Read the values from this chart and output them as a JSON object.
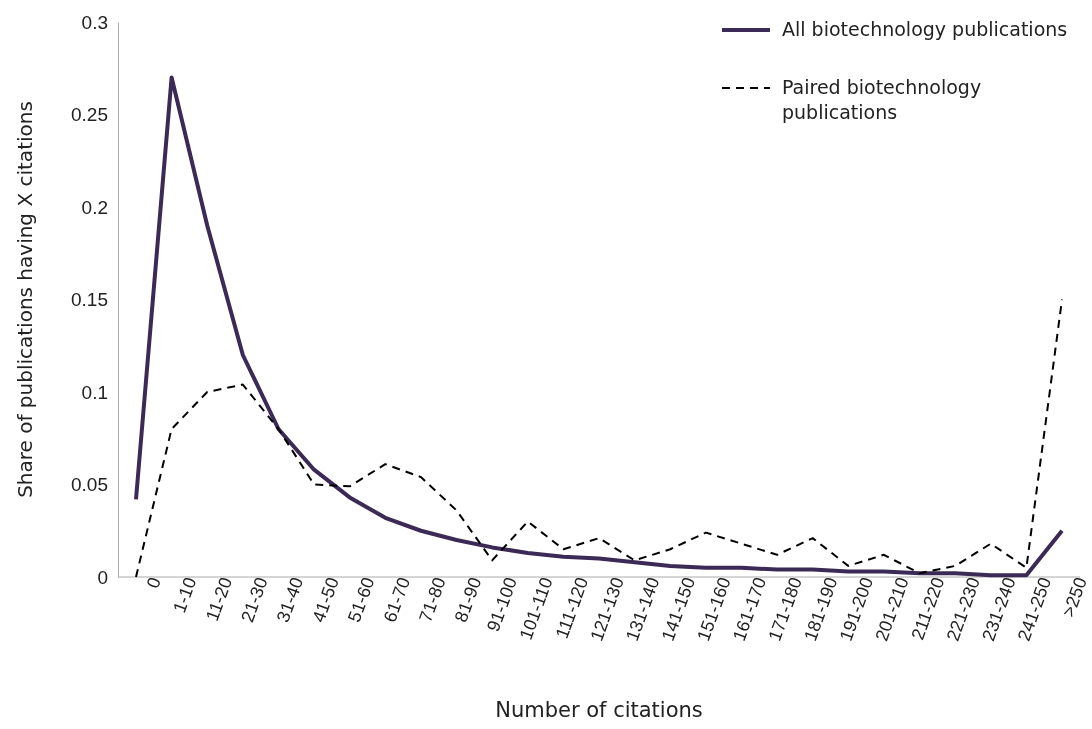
{
  "chart_data": {
    "type": "line",
    "xlabel": "Number of citations",
    "ylabel": "Share of publications having X citations",
    "categories": [
      "0",
      "1-10",
      "11-20",
      "21-30",
      "31-40",
      "41-50",
      "51-60",
      "61-70",
      "71-80",
      "81-90",
      "91-100",
      "101-110",
      "111-120",
      "121-130",
      "131-140",
      "141-150",
      "151-160",
      "161-170",
      "171-180",
      "181-190",
      "191-200",
      "201-210",
      "211-220",
      "221-230",
      "231-240",
      "241-250",
      ">250"
    ],
    "series": [
      {
        "name": "All biotechnology publications",
        "color": "#3b2a55",
        "line_style": "solid",
        "values": [
          0.042,
          0.27,
          0.19,
          0.12,
          0.08,
          0.058,
          0.043,
          0.032,
          0.025,
          0.02,
          0.016,
          0.013,
          0.011,
          0.01,
          0.008,
          0.006,
          0.005,
          0.005,
          0.004,
          0.004,
          0.003,
          0.003,
          0.002,
          0.002,
          0.001,
          0.001,
          0.025
        ]
      },
      {
        "name": "Paired biotechnology publications",
        "color": "#000000",
        "line_style": "dashed",
        "values": [
          0,
          0.08,
          0.1,
          0.104,
          0.08,
          0.05,
          0.049,
          0.061,
          0.054,
          0.036,
          0.009,
          0.03,
          0.015,
          0.021,
          0.009,
          0.015,
          0.024,
          0.018,
          0.012,
          0.021,
          0.006,
          0.012,
          0.002,
          0.006,
          0.018,
          0.005,
          0.15
        ]
      }
    ],
    "ylim": [
      0,
      0.3
    ],
    "yticks": [
      0,
      0.05,
      0.1,
      0.15,
      0.2,
      0.25,
      0.3
    ],
    "grid": false,
    "legend": "top right",
    "marker": "none"
  }
}
